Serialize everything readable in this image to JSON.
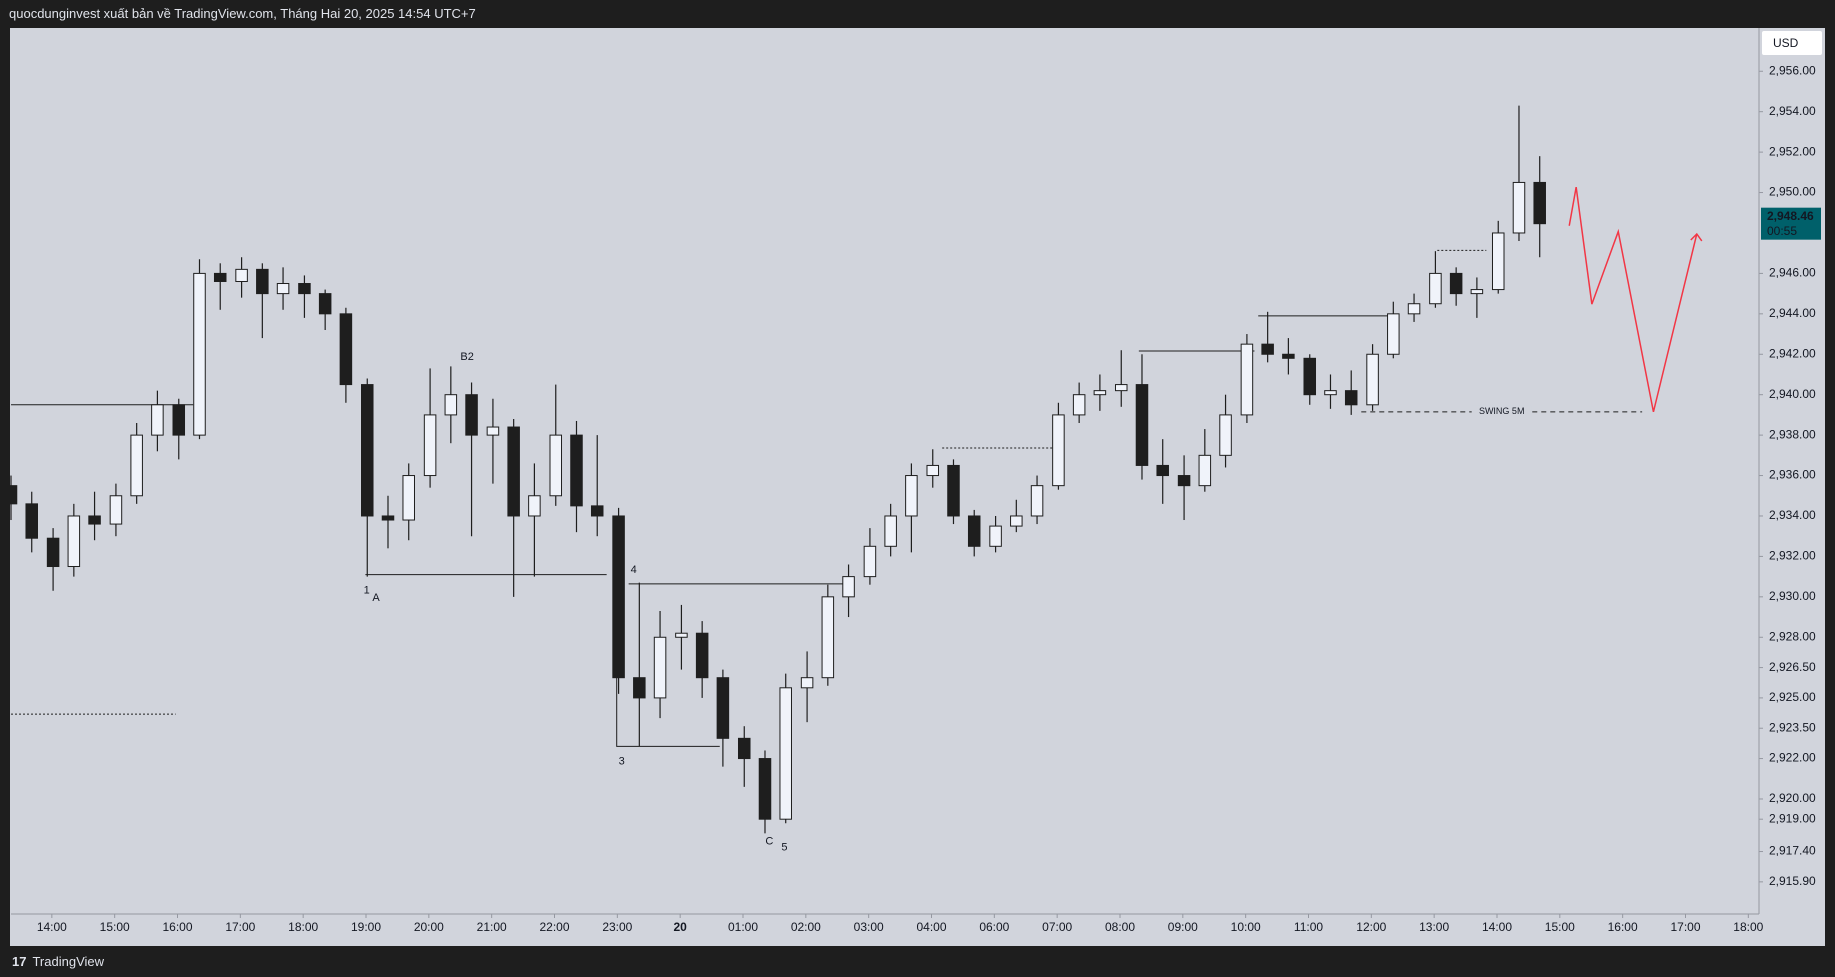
{
  "header": {
    "title": "quocdunginvest xuất bản về TradingView.com, Tháng Hai 20, 2025 14:54 UTC+7"
  },
  "footer": {
    "brand": "TradingView"
  },
  "chart_data": {
    "type": "candlestick",
    "currency": "USD",
    "up_color": "#f0f3fa",
    "down_color": "#1e1e1e",
    "wick_color": "#1e1e1e",
    "xlim": [
      -0.65,
      27.17
    ],
    "ylim": [
      2914.31,
      2958.14
    ],
    "xticks": [
      {
        "value": 0,
        "label": "14:00"
      },
      {
        "value": 1,
        "label": "15:00"
      },
      {
        "value": 2,
        "label": "16:00"
      },
      {
        "value": 3,
        "label": "17:00"
      },
      {
        "value": 4,
        "label": "18:00"
      },
      {
        "value": 5,
        "label": "19:00"
      },
      {
        "value": 6,
        "label": "20:00"
      },
      {
        "value": 7,
        "label": "21:00"
      },
      {
        "value": 8,
        "label": "22:00"
      },
      {
        "value": 9,
        "label": "23:00"
      },
      {
        "value": 10,
        "label": "20"
      },
      {
        "value": 11,
        "label": "01:00"
      },
      {
        "value": 12,
        "label": "02:00"
      },
      {
        "value": 13,
        "label": "03:00"
      },
      {
        "value": 14,
        "label": "04:00"
      },
      {
        "value": 15,
        "label": "06:00"
      },
      {
        "value": 16,
        "label": "07:00"
      },
      {
        "value": 17,
        "label": "08:00"
      },
      {
        "value": 18,
        "label": "09:00"
      },
      {
        "value": 19,
        "label": "10:00"
      },
      {
        "value": 20,
        "label": "11:00"
      },
      {
        "value": 21,
        "label": "12:00"
      },
      {
        "value": 22,
        "label": "13:00"
      },
      {
        "value": 23,
        "label": "14:00"
      },
      {
        "value": 24,
        "label": "15:00"
      },
      {
        "value": 25,
        "label": "16:00"
      },
      {
        "value": 26,
        "label": "17:00"
      },
      {
        "value": 27,
        "label": "18:00"
      }
    ],
    "yticks": [
      {
        "value": 2956,
        "label": "2,956.00"
      },
      {
        "value": 2954,
        "label": "2,954.00"
      },
      {
        "value": 2952,
        "label": "2,952.00"
      },
      {
        "value": 2950,
        "label": "2,950.00"
      },
      {
        "value": 2946,
        "label": "2,946.00"
      },
      {
        "value": 2944,
        "label": "2,944.00"
      },
      {
        "value": 2942,
        "label": "2,942.00"
      },
      {
        "value": 2940,
        "label": "2,940.00"
      },
      {
        "value": 2938,
        "label": "2,938.00"
      },
      {
        "value": 2936,
        "label": "2,936.00"
      },
      {
        "value": 2934,
        "label": "2,934.00"
      },
      {
        "value": 2932,
        "label": "2,932.00"
      },
      {
        "value": 2930,
        "label": "2,930.00"
      },
      {
        "value": 2928,
        "label": "2,928.00"
      },
      {
        "value": 2926.5,
        "label": "2,926.50"
      },
      {
        "value": 2925,
        "label": "2,925.00"
      },
      {
        "value": 2923.5,
        "label": "2,923.50"
      },
      {
        "value": 2922,
        "label": "2,922.00"
      },
      {
        "value": 2920,
        "label": "2,920.00"
      },
      {
        "value": 2919,
        "label": "2,919.00"
      },
      {
        "value": 2917.4,
        "label": "2,917.40"
      },
      {
        "value": 2915.9,
        "label": "2,915.90"
      }
    ],
    "last_price": {
      "value": 2948.46,
      "label": "2,948.46",
      "countdown": "00:55",
      "color": "#00606a"
    },
    "x": [
      -0.65,
      -0.32,
      0.02,
      0.35,
      0.68,
      1.02,
      1.35,
      1.68,
      2.02,
      2.35,
      2.68,
      3.02,
      3.35,
      3.68,
      4.02,
      4.35,
      4.68,
      5.02,
      5.35,
      5.68,
      6.02,
      6.35,
      6.68,
      7.02,
      7.35,
      7.68,
      8.02,
      8.35,
      8.68,
      9.02,
      9.35,
      9.68,
      10.02,
      10.35,
      10.68,
      11.02,
      11.35,
      11.68,
      12.02,
      12.35,
      12.68,
      13.02,
      13.35,
      13.68,
      14.02,
      14.35,
      14.68,
      15.02,
      15.35,
      15.68,
      16.02,
      16.35,
      16.68,
      17.02,
      17.35,
      17.68,
      18.02,
      18.35,
      18.68,
      19.02,
      19.35,
      19.68,
      20.02,
      20.35,
      20.68,
      21.02,
      21.35,
      21.68,
      22.02,
      22.35,
      22.68,
      23.02,
      23.35,
      23.68
    ],
    "open": [
      2935.5,
      2934.6,
      2932.9,
      2931.5,
      2934.0,
      2933.6,
      2935.0,
      2938.0,
      2939.5,
      2938.0,
      2946.0,
      2945.6,
      2946.2,
      2945.0,
      2945.5,
      2945.0,
      2944.0,
      2940.5,
      2934.0,
      2933.8,
      2936.0,
      2939.0,
      2940.0,
      2938.0,
      2938.4,
      2934.0,
      2935.0,
      2938.0,
      2934.5,
      2934.0,
      2926.0,
      2925.0,
      2928.0,
      2928.2,
      2926.0,
      2923.0,
      2922.0,
      2919.0,
      2925.5,
      2926.0,
      2930.0,
      2931.0,
      2932.5,
      2934.0,
      2936.0,
      2936.5,
      2934.0,
      2932.5,
      2933.5,
      2934.0,
      2935.5,
      2939.0,
      2940.0,
      2940.2,
      2940.5,
      2936.5,
      2936.0,
      2935.5,
      2937.0,
      2939.0,
      2942.5,
      2942.0,
      2941.8,
      2940.0,
      2940.2,
      2939.5,
      2942.0,
      2944.0,
      2944.5,
      2946.0,
      2945.0,
      2945.2,
      2948.0,
      2950.5
    ],
    "high": [
      2936.0,
      2935.2,
      2933.4,
      2934.6,
      2935.2,
      2935.6,
      2938.6,
      2940.2,
      2939.8,
      2946.7,
      2946.5,
      2946.8,
      2946.5,
      2946.3,
      2945.9,
      2945.2,
      2944.3,
      2940.8,
      2935.0,
      2936.6,
      2941.3,
      2941.4,
      2940.6,
      2939.8,
      2938.8,
      2936.6,
      2940.5,
      2938.7,
      2938.0,
      2934.4,
      2930.7,
      2929.3,
      2929.6,
      2928.8,
      2926.4,
      2923.6,
      2922.4,
      2926.2,
      2927.3,
      2930.6,
      2931.6,
      2933.4,
      2934.6,
      2936.6,
      2937.3,
      2936.8,
      2934.3,
      2934.0,
      2934.8,
      2936.0,
      2939.6,
      2940.6,
      2941.0,
      2942.2,
      2942.0,
      2937.8,
      2937.0,
      2938.3,
      2940.0,
      2943.0,
      2944.1,
      2942.8,
      2942.0,
      2941.0,
      2941.2,
      2942.5,
      2944.6,
      2945.0,
      2947.1,
      2946.3,
      2945.8,
      2948.6,
      2954.3,
      2951.8
    ],
    "low": [
      2933.8,
      2932.2,
      2930.3,
      2931.0,
      2932.8,
      2933.0,
      2934.6,
      2937.2,
      2936.8,
      2937.8,
      2944.2,
      2944.8,
      2942.8,
      2944.2,
      2943.8,
      2943.2,
      2939.6,
      2931.0,
      2932.4,
      2932.8,
      2935.4,
      2937.6,
      2933.0,
      2935.6,
      2930.0,
      2931.0,
      2934.5,
      2933.2,
      2933.0,
      2925.2,
      2922.6,
      2924.0,
      2926.4,
      2925.0,
      2921.6,
      2920.6,
      2918.3,
      2918.8,
      2923.8,
      2925.6,
      2929.0,
      2930.6,
      2932.0,
      2932.2,
      2935.4,
      2933.6,
      2932.0,
      2932.2,
      2933.2,
      2933.6,
      2935.3,
      2938.6,
      2939.2,
      2939.4,
      2935.8,
      2934.6,
      2933.8,
      2935.2,
      2936.4,
      2938.6,
      2941.6,
      2941.0,
      2939.5,
      2939.3,
      2939.0,
      2939.2,
      2941.8,
      2943.6,
      2944.3,
      2944.4,
      2943.8,
      2945.0,
      2947.6,
      2946.8
    ],
    "close": [
      2934.6,
      2932.9,
      2931.5,
      2934.0,
      2933.6,
      2935.0,
      2938.0,
      2939.5,
      2938.0,
      2946.0,
      2945.6,
      2946.2,
      2945.0,
      2945.5,
      2945.0,
      2944.0,
      2940.5,
      2934.0,
      2933.8,
      2936.0,
      2939.0,
      2940.0,
      2938.0,
      2938.4,
      2934.0,
      2935.0,
      2938.0,
      2934.5,
      2934.0,
      2926.0,
      2925.0,
      2928.0,
      2928.2,
      2926.0,
      2923.0,
      2922.0,
      2919.0,
      2925.5,
      2926.0,
      2930.0,
      2931.0,
      2932.5,
      2934.0,
      2936.0,
      2936.5,
      2934.0,
      2932.5,
      2933.5,
      2934.0,
      2935.5,
      2939.0,
      2940.0,
      2940.2,
      2940.5,
      2936.5,
      2936.0,
      2935.5,
      2937.0,
      2939.0,
      2942.5,
      2942.0,
      2941.8,
      2940.0,
      2940.2,
      2939.5,
      2942.0,
      2944.0,
      2944.5,
      2946.0,
      2945.0,
      2945.2,
      2948.0,
      2950.5,
      2948.46
    ],
    "drawings": [
      {
        "style": "solid",
        "x": [
          -0.65,
          2.25
        ],
        "y": [
          2939.5,
          2939.5
        ]
      },
      {
        "style": "dotted",
        "x": [
          -0.65,
          1.97
        ],
        "y": [
          2924.2,
          2924.2
        ]
      },
      {
        "style": "solid",
        "x": [
          4.99,
          8.83
        ],
        "y": [
          2931.1,
          2931.1
        ]
      },
      {
        "style": "solid",
        "x": [
          9.18,
          12.59
        ],
        "y": [
          2930.64,
          2930.64
        ]
      },
      {
        "style": "solid",
        "x": [
          8.99,
          8.99,
          10.63
        ],
        "y": [
          2930.64,
          2922.6,
          2922.6
        ]
      },
      {
        "style": "dotted",
        "x": [
          14.17,
          15.94
        ],
        "y": [
          2937.36,
          2937.36
        ]
      },
      {
        "style": "solid",
        "x": [
          17.3,
          19.14
        ],
        "y": [
          2942.16,
          2942.16
        ]
      },
      {
        "style": "solid",
        "x": [
          19.2,
          21.34
        ],
        "y": [
          2943.9,
          2943.9
        ]
      },
      {
        "style": "dotted",
        "x": [
          22.05,
          22.83
        ],
        "y": [
          2947.14,
          2947.14
        ]
      },
      {
        "style": "dashed",
        "label": "SWING 5M",
        "x": [
          20.84,
          25.31
        ],
        "y": [
          2939.15,
          2939.15
        ]
      }
    ],
    "projection": {
      "color": "#f23645",
      "x": [
        24.15,
        24.26,
        24.51,
        24.93,
        25.49,
        26.18
      ],
      "y": [
        2948.36,
        2950.27,
        2944.48,
        2948.07,
        2939.15,
        2947.95
      ]
    },
    "annotations": [
      {
        "text": "1",
        "x": 5.01,
        "y": 2930.3,
        "color": "#787b86"
      },
      {
        "text": "A",
        "x": 5.16,
        "y": 2929.94,
        "color": "#43a047"
      },
      {
        "text": "B2",
        "x": 6.61,
        "y": 2941.87,
        "color": "#43a047"
      },
      {
        "text": "4",
        "x": 9.26,
        "y": 2931.33,
        "color": "#787b86"
      },
      {
        "text": "3",
        "x": 9.07,
        "y": 2921.84,
        "color": "#787b86"
      },
      {
        "text": "C",
        "x": 11.42,
        "y": 2917.9,
        "color": "#43a047"
      },
      {
        "text": "5",
        "x": 11.66,
        "y": 2917.6,
        "color": "#787b86"
      }
    ]
  }
}
